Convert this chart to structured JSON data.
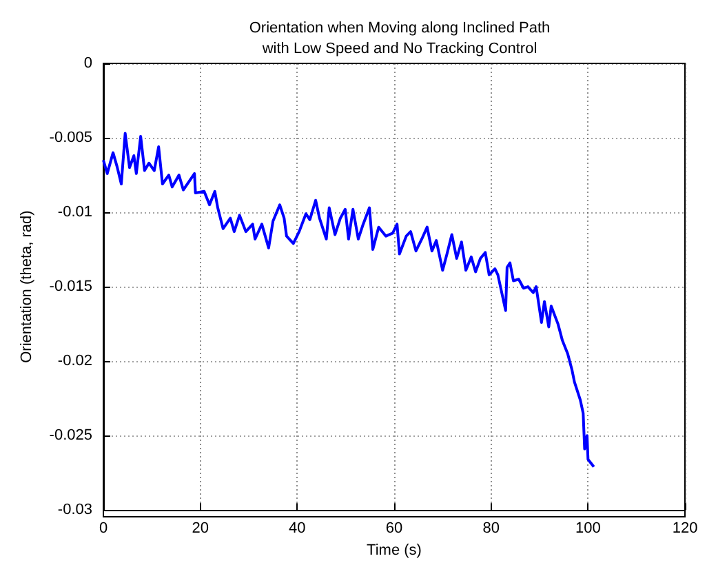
{
  "chart_data": {
    "type": "line",
    "title": "Orientation when Moving along Inclined Path\nwith Low Speed and No Tracking Control",
    "xlabel": "Time (s)",
    "ylabel": "Orientation (theta, rad)",
    "xlim": [
      0,
      120
    ],
    "xticks": [
      0,
      20,
      40,
      60,
      80,
      100,
      120
    ],
    "ylim": [
      -0.03,
      0
    ],
    "yticks": [
      -0.03,
      -0.025,
      -0.02,
      -0.015,
      -0.01,
      -0.005,
      0
    ],
    "grid": true,
    "line_style": "solid",
    "series": [
      {
        "color": "#0000ff",
        "x": [
          0,
          0.8,
          2,
          2.8,
          3.7,
          4.5,
          5.4,
          6.3,
          6.8,
          7.7,
          8.5,
          9.4,
          10.5,
          11.4,
          12.2,
          13.5,
          14.2,
          15.6,
          16.5,
          18.8,
          19,
          20.8,
          21.9,
          23,
          23.6,
          24.7,
          26.2,
          27,
          28.1,
          29.4,
          30.8,
          31.3,
          32.7,
          34.1,
          35,
          36.4,
          37.3,
          37.8,
          39.2,
          40.4,
          41.8,
          42.6,
          43.8,
          44.6,
          46,
          46.6,
          47.8,
          48.9,
          49.9,
          50.6,
          51.5,
          52.6,
          53.5,
          54.9,
          55.6,
          56.8,
          58.3,
          59.7,
          60.6,
          61.1,
          62.5,
          63.4,
          64.5,
          65.7,
          66.8,
          67.8,
          68.7,
          70,
          70.9,
          71.9,
          72.9,
          73.9,
          74.8,
          75.9,
          76.8,
          77.8,
          78.8,
          79.6,
          80.8,
          81.4,
          83,
          83.3,
          83.9,
          84.6,
          85.7,
          86.7,
          87.6,
          88.7,
          89.3,
          90.4,
          91,
          91.9,
          92.4,
          93.8,
          94.7,
          95.8,
          96.7,
          97.2,
          98.4,
          99,
          99.3,
          99.8,
          100,
          101.2
        ],
        "values": [
          -0.0065,
          -0.0074,
          -0.006,
          -0.0069,
          -0.0081,
          -0.0047,
          -0.007,
          -0.0062,
          -0.0074,
          -0.0049,
          -0.0072,
          -0.0067,
          -0.0072,
          -0.0056,
          -0.0081,
          -0.0075,
          -0.0083,
          -0.0075,
          -0.0085,
          -0.0074,
          -0.0087,
          -0.0086,
          -0.0095,
          -0.0086,
          -0.0097,
          -0.0111,
          -0.0104,
          -0.0113,
          -0.0102,
          -0.0113,
          -0.0108,
          -0.0118,
          -0.0108,
          -0.0124,
          -0.0106,
          -0.0095,
          -0.0104,
          -0.0116,
          -0.0121,
          -0.0113,
          -0.0101,
          -0.0105,
          -0.0092,
          -0.0104,
          -0.0118,
          -0.0097,
          -0.0115,
          -0.0104,
          -0.0098,
          -0.0118,
          -0.0098,
          -0.0118,
          -0.0109,
          -0.0097,
          -0.0125,
          -0.011,
          -0.0116,
          -0.0114,
          -0.0108,
          -0.0128,
          -0.0116,
          -0.0113,
          -0.0126,
          -0.0118,
          -0.011,
          -0.0126,
          -0.0119,
          -0.0139,
          -0.0128,
          -0.0115,
          -0.0131,
          -0.012,
          -0.0139,
          -0.013,
          -0.014,
          -0.0131,
          -0.0127,
          -0.0142,
          -0.0138,
          -0.0142,
          -0.0166,
          -0.0137,
          -0.0134,
          -0.0146,
          -0.0145,
          -0.0151,
          -0.015,
          -0.0154,
          -0.015,
          -0.0174,
          -0.016,
          -0.0177,
          -0.0163,
          -0.0175,
          -0.0186,
          -0.0195,
          -0.0206,
          -0.0214,
          -0.0226,
          -0.0235,
          -0.0259,
          -0.025,
          -0.0266,
          -0.0271
        ]
      }
    ]
  }
}
